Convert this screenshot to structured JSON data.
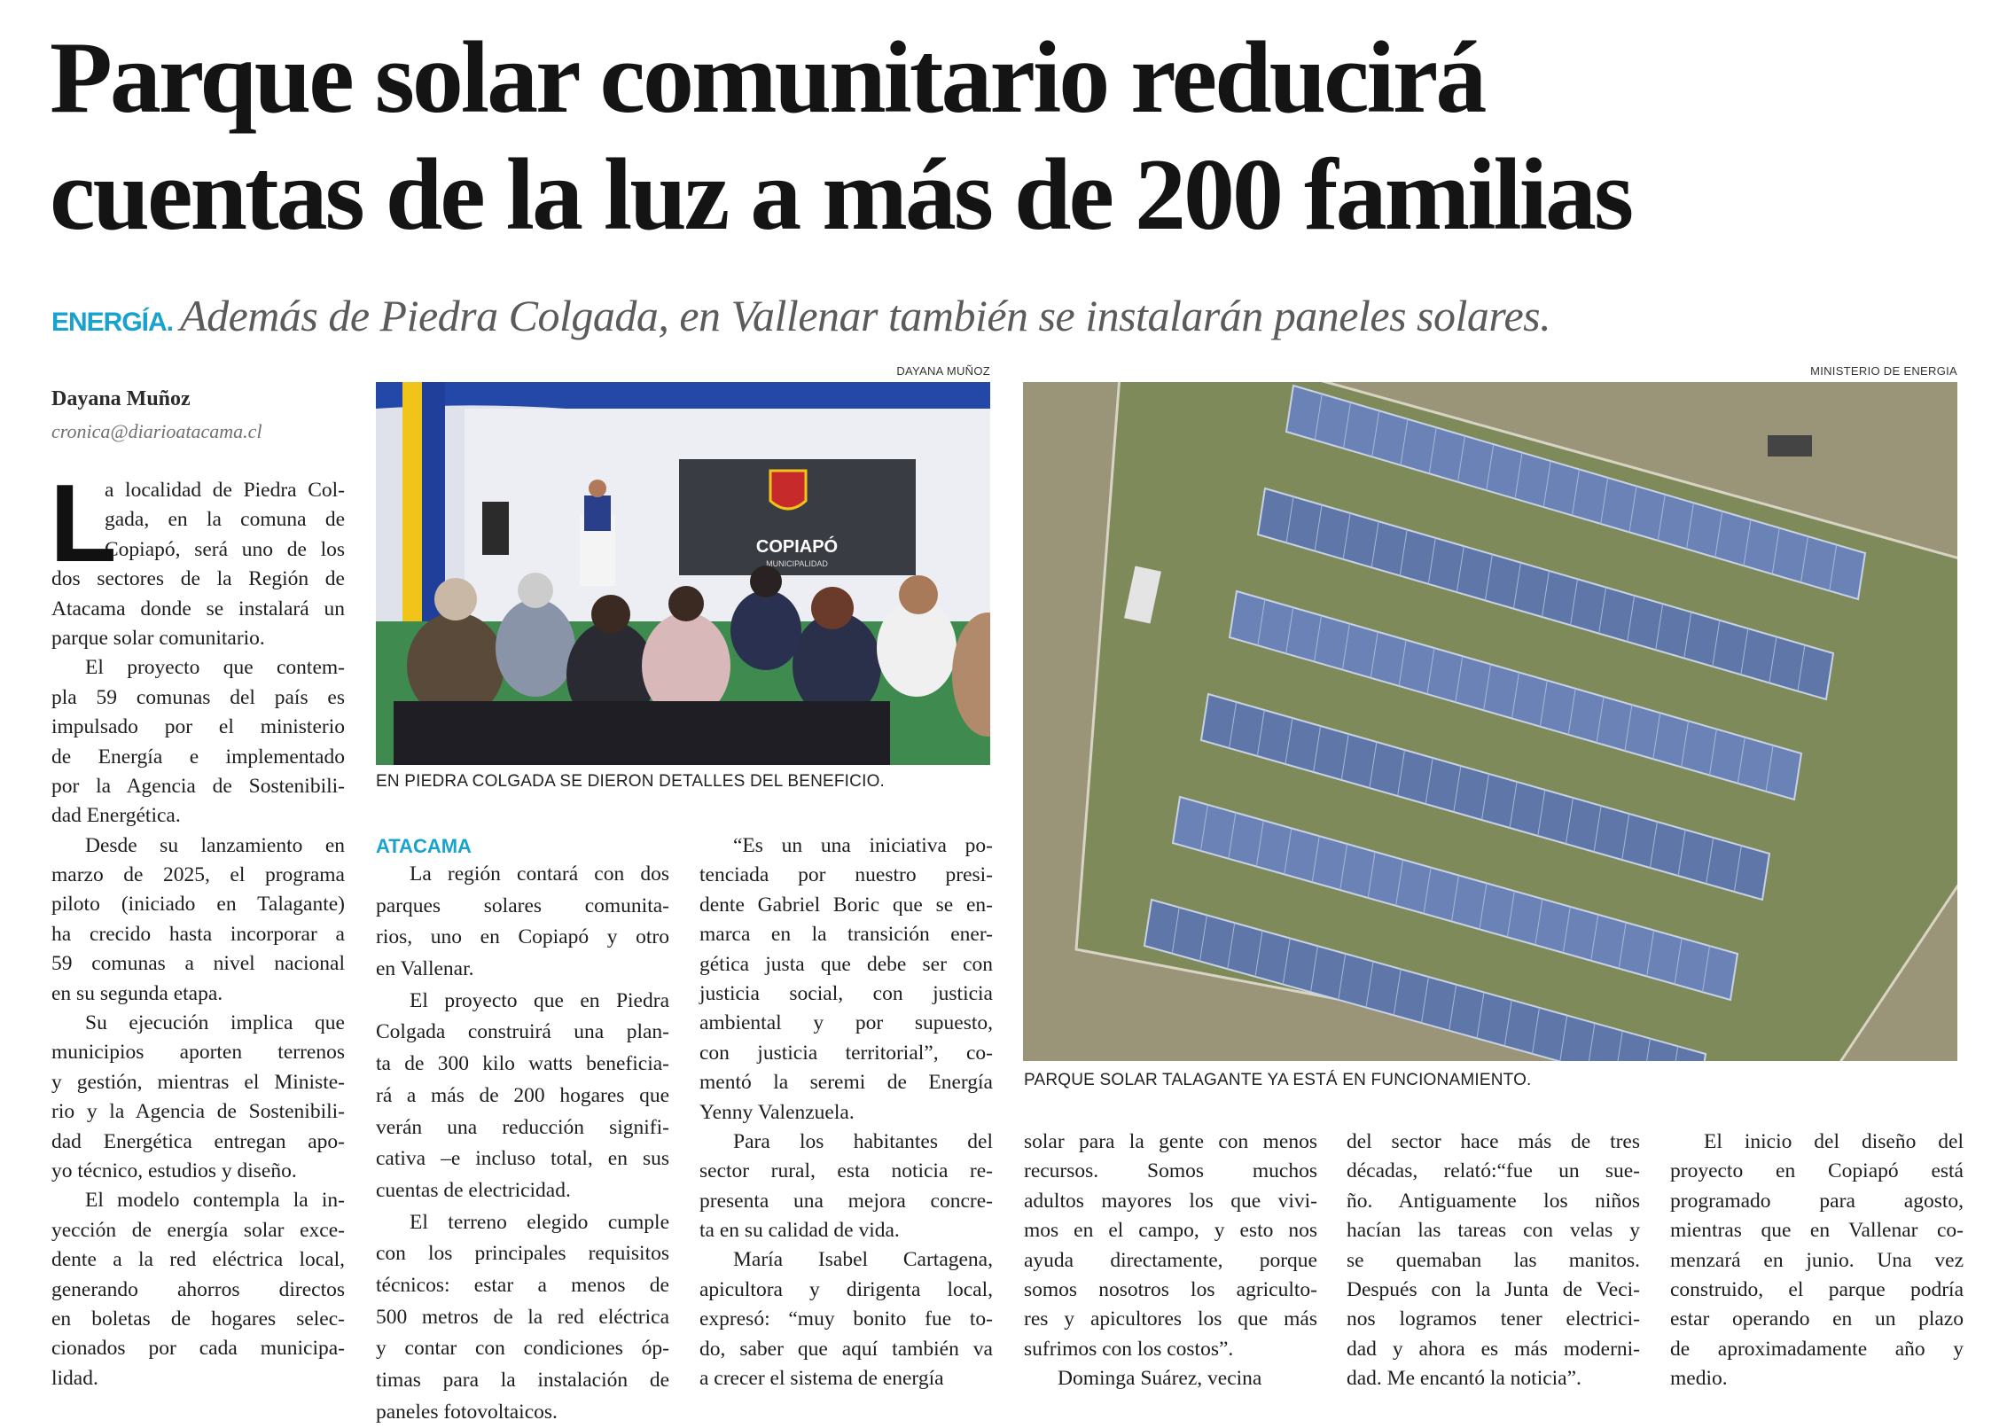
{
  "headline": {
    "line1": "Parque solar comunitario reducirá",
    "line2": "cuentas de la luz a más de 200 familias"
  },
  "subtitle": {
    "kicker": "ENERGÍA.",
    "deck": "Además de Piedra Colgada, en Vallenar también se instalarán paneles solares.",
    "kicker_color": "#19a3cc"
  },
  "byline": {
    "author": "Dayana Muñoz",
    "email": "cronica@diarioatacama.cl"
  },
  "photos": [
    {
      "credit": "DAYANA MUÑOZ",
      "caption": "EN PIEDRA COLGADA SE DIERON DETALLES DEL BENEFICIO.",
      "logo_text": "COPIAPÓ",
      "logo_subtext": "MUNICIPALIDAD"
    },
    {
      "credit": "MINISTERIO DE ENERGIA",
      "caption": "PARQUE SOLAR TALAGANTE YA ESTÁ EN FUNCIONAMIENTO."
    }
  ],
  "article": {
    "drop_cap": "L",
    "section_label": "ATACAMA",
    "columns": [
      {
        "paragraphs": [
          [
            "a localidad de Piedra Col-",
            "gada, en la comuna de",
            "Copiapó, será uno de los",
            "dos sectores de la Región de",
            "Atacama donde se instalará un",
            "parque solar comunitario."
          ],
          [
            "El proyecto que contem-",
            "pla 59 comunas del país es",
            "impulsado por el ministerio",
            "de Energía e implementado",
            "por la Agencia de Sostenibili-",
            "dad Energética."
          ],
          [
            "Desde su lanzamiento en",
            "marzo de 2025, el programa",
            "piloto (iniciado en Talagante)",
            "ha crecido hasta incorporar a",
            "59 comunas a nivel nacional",
            "en su segunda etapa."
          ],
          [
            "Su ejecución implica que",
            "municipios aporten terrenos",
            "y gestión, mientras el Ministe-",
            "rio y la Agencia de Sostenibili-",
            "dad Energética entregan apo-",
            "yo técnico, estudios y diseño."
          ],
          [
            "El modelo contempla la in-",
            "yección de energía solar exce-",
            "dente a la red eléctrica local,",
            "generando ahorros directos",
            "en boletas de hogares selec-",
            "cionados por cada municipa-",
            "lidad."
          ]
        ]
      },
      {
        "paragraphs": [
          [
            "La región contará con dos",
            "parques solares comunita-",
            "rios, uno en Copiapó y otro",
            "en Vallenar."
          ],
          [
            "El proyecto que en Piedra",
            "Colgada construirá una plan-",
            "ta de 300 kilo watts beneficia-",
            "rá a más de 200 hogares que",
            "verán una reducción signifi-",
            "cativa –e incluso total, en sus",
            "cuentas de electricidad."
          ],
          [
            "El terreno elegido cumple",
            "con los principales requisitos",
            "técnicos: estar a menos de",
            "500 metros de la red eléctrica",
            "y contar con condiciones óp-",
            "timas para la instalación de",
            "paneles fotovoltaicos."
          ]
        ]
      },
      {
        "paragraphs": [
          [
            "“Es un una iniciativa po-",
            "tenciada por nuestro presi-",
            "dente Gabriel Boric que se en-",
            "marca en la transición ener-",
            "gética justa que debe ser con",
            "justicia social, con justicia",
            "ambiental y por supuesto,",
            "con justicia territorial”, co-",
            "mentó la seremi de Energía",
            "Yenny Valenzuela."
          ],
          [
            "Para los habitantes del",
            "sector rural, esta noticia re-",
            "presenta una mejora concre-",
            "ta en su calidad de vida."
          ],
          [
            "María Isabel Cartagena,",
            "apicultora y dirigenta local,",
            "expresó: “muy bonito fue to-",
            "do, saber que aquí también va",
            "a crecer el sistema de energía"
          ]
        ]
      },
      {
        "paragraphs": [
          [
            "solar para la gente con menos",
            "recursos. Somos muchos",
            "adultos mayores los que vivi-",
            "mos en el campo, y esto nos",
            "ayuda directamente, porque",
            "somos nosotros los agriculto-",
            "res y apicultores los que más",
            "sufrimos con los costos”."
          ],
          [
            "Dominga Suárez, vecina"
          ]
        ]
      },
      {
        "paragraphs": [
          [
            "del sector hace más de tres",
            "décadas, relató:“fue un sue-",
            "ño. Antiguamente los niños",
            "hacían las tareas con velas y",
            "se quemaban las manitos.",
            "Después con la Junta de Veci-",
            "nos logramos tener electrici-",
            "dad y ahora es más moderni-",
            "dad. Me encantó la noticia”."
          ]
        ]
      },
      {
        "paragraphs": [
          [
            "El inicio del diseño del",
            "proyecto en Copiapó está",
            "programado para agosto,",
            "mientras que en Vallenar co-",
            "menzará en junio. Una vez",
            "construido, el parque podría",
            "estar operando en un plazo",
            "de aproximadamente año y",
            "medio."
          ]
        ]
      }
    ]
  }
}
